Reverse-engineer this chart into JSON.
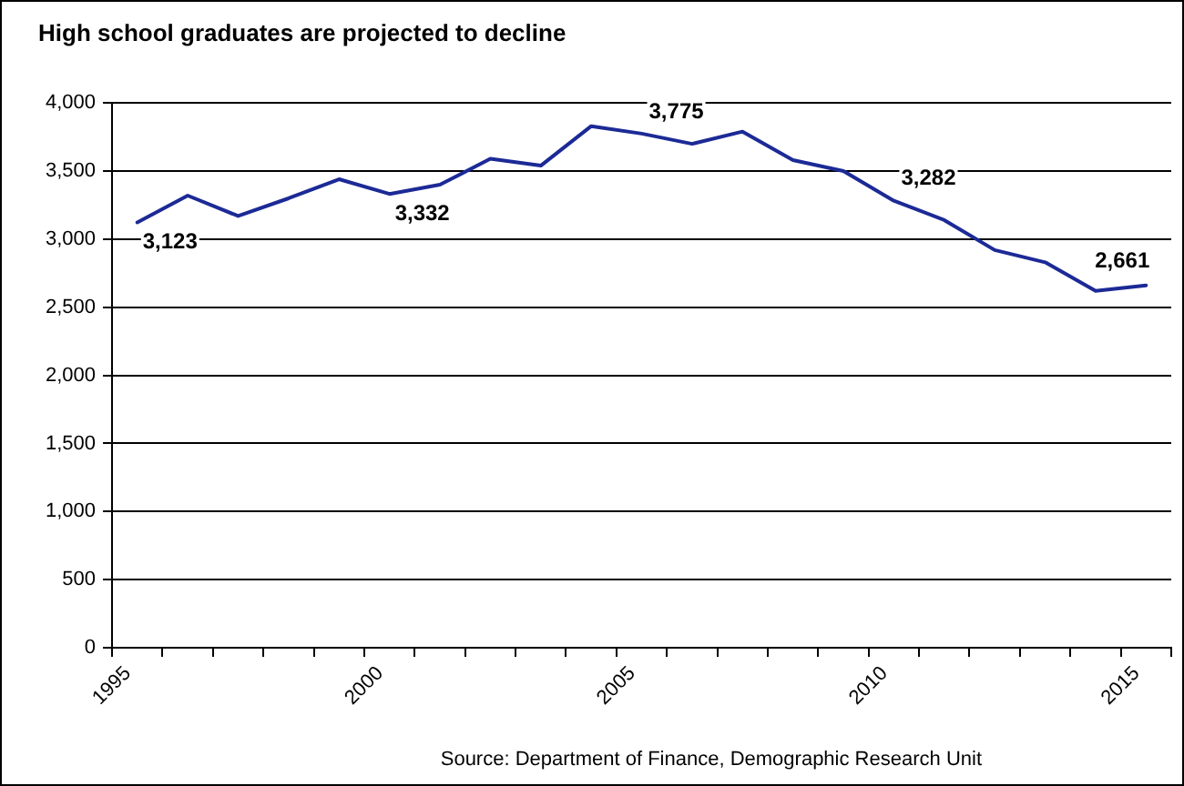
{
  "chart_data": {
    "type": "line",
    "title": "High school graduates are projected to decline",
    "x": [
      1995.5,
      1996.5,
      1997.5,
      1998.5,
      1999.5,
      2000.5,
      2001.5,
      2002.5,
      2003.5,
      2004.5,
      2005.5,
      2006.5,
      2007.5,
      2008.5,
      2009.5,
      2010.5,
      2011.5,
      2012.5,
      2013.5,
      2014.5,
      2015.5
    ],
    "series": [
      {
        "color": "#1c2a96",
        "values": [
          3123,
          3320,
          3170,
          3300,
          3440,
          3332,
          3400,
          3590,
          3540,
          3830,
          3775,
          3700,
          3790,
          3580,
          3500,
          3282,
          3140,
          2920,
          2830,
          2620,
          2661
        ],
        "value_labels": [
          "3,123",
          null,
          null,
          null,
          null,
          "3,332",
          null,
          null,
          null,
          null,
          "3,775",
          null,
          null,
          null,
          null,
          "3,282",
          null,
          null,
          null,
          null,
          "2,661"
        ]
      }
    ],
    "xlim": [
      1995,
      2016
    ],
    "xticks": [
      1995,
      {
        "value": 1996,
        "label": null
      },
      {
        "value": 1997,
        "label": null
      },
      {
        "value": 1998,
        "label": null
      },
      {
        "value": 1999,
        "label": null
      },
      2000,
      {
        "value": 2001,
        "label": null
      },
      {
        "value": 2002,
        "label": null
      },
      {
        "value": 2003,
        "label": null
      },
      {
        "value": 2004,
        "label": null
      },
      2005,
      {
        "value": 2006,
        "label": null
      },
      {
        "value": 2007,
        "label": null
      },
      {
        "value": 2008,
        "label": null
      },
      {
        "value": 2009,
        "label": null
      },
      2010,
      {
        "value": 2011,
        "label": null
      },
      {
        "value": 2012,
        "label": null
      },
      {
        "value": 2013,
        "label": null
      },
      {
        "value": 2014,
        "label": null
      },
      2015,
      {
        "value": 2016,
        "label": null
      }
    ],
    "ylim": [
      0,
      4000
    ],
    "yticks": [
      {
        "value": 0,
        "label": "0"
      },
      {
        "value": 500,
        "label": "500"
      },
      {
        "value": 1000,
        "label": "1,000"
      },
      {
        "value": 1500,
        "label": "1,500"
      },
      {
        "value": 2000,
        "label": "2,000"
      },
      {
        "value": 2500,
        "label": "2,500"
      },
      {
        "value": 3000,
        "label": "3,000"
      },
      {
        "value": 3500,
        "label": "3,500"
      },
      {
        "value": 4000,
        "label": "4,000"
      }
    ],
    "grid": "y",
    "legend": false,
    "marker": "none",
    "line_style": "solid",
    "annotations": [
      "Source: Department of Finance, Demographic Research Unit"
    ]
  }
}
